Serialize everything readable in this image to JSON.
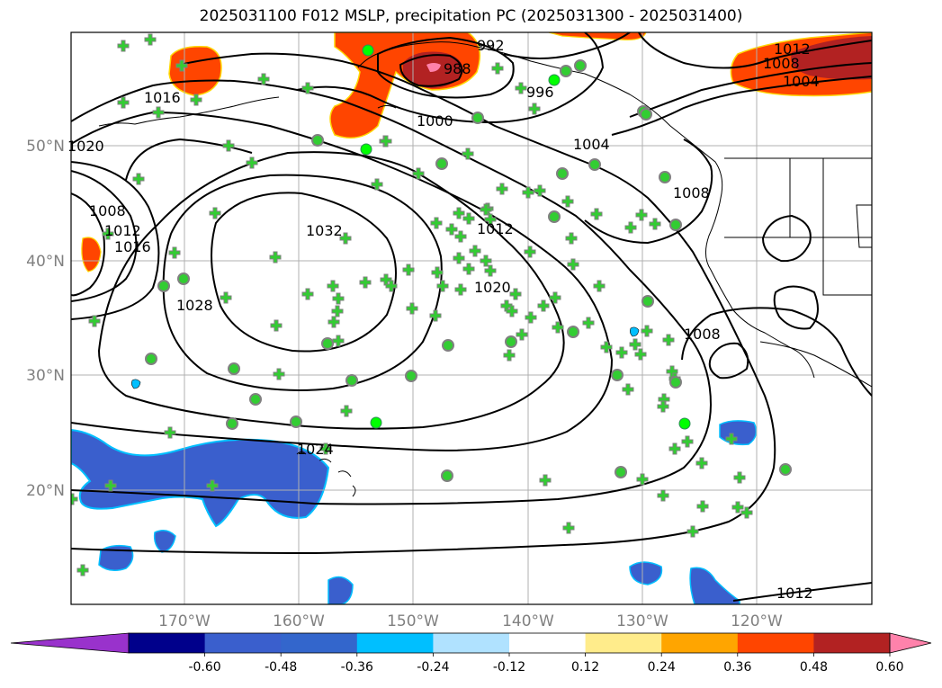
{
  "title": "2025031100 F012 MSLP, precipitation PC (2025031300 - 2025031400)",
  "lat_labels": [
    "50°N",
    "40°N",
    "30°N",
    "20°N"
  ],
  "lon_labels": [
    "170°W",
    "160°W",
    "150°W",
    "140°W",
    "130°W",
    "120°W"
  ],
  "isobar_labels": [
    "992",
    "988",
    "996",
    "1000",
    "1004",
    "1012",
    "1008",
    "1004",
    "1016",
    "1020",
    "1008",
    "1012",
    "1016",
    "1032",
    "1028",
    "1012",
    "1020",
    "1008",
    "1024",
    "1012",
    "1008"
  ],
  "colorbar": {
    "colors": [
      "#9932cc",
      "#00008b",
      "#3a5fcd",
      "#3366cc",
      "#00bfff",
      "#b0e2ff",
      "#ffffff",
      "#ffec8b",
      "#ffa500",
      "#ff4500",
      "#b22222",
      "#ff82ab"
    ],
    "labels": [
      "-0.60",
      "-0.48",
      "-0.36",
      "-0.24",
      "-0.12",
      "0.12",
      "0.24",
      "0.36",
      "0.48",
      "0.60"
    ]
  },
  "colors": {
    "positive_strong": "#ff4500",
    "positive_max": "#b22222",
    "positive_extreme": "#ff82ab",
    "negative": "#3a5fcd",
    "negative_edge": "#00bfff",
    "station_fill": "#32cd32",
    "station_edge": "#808080"
  }
}
